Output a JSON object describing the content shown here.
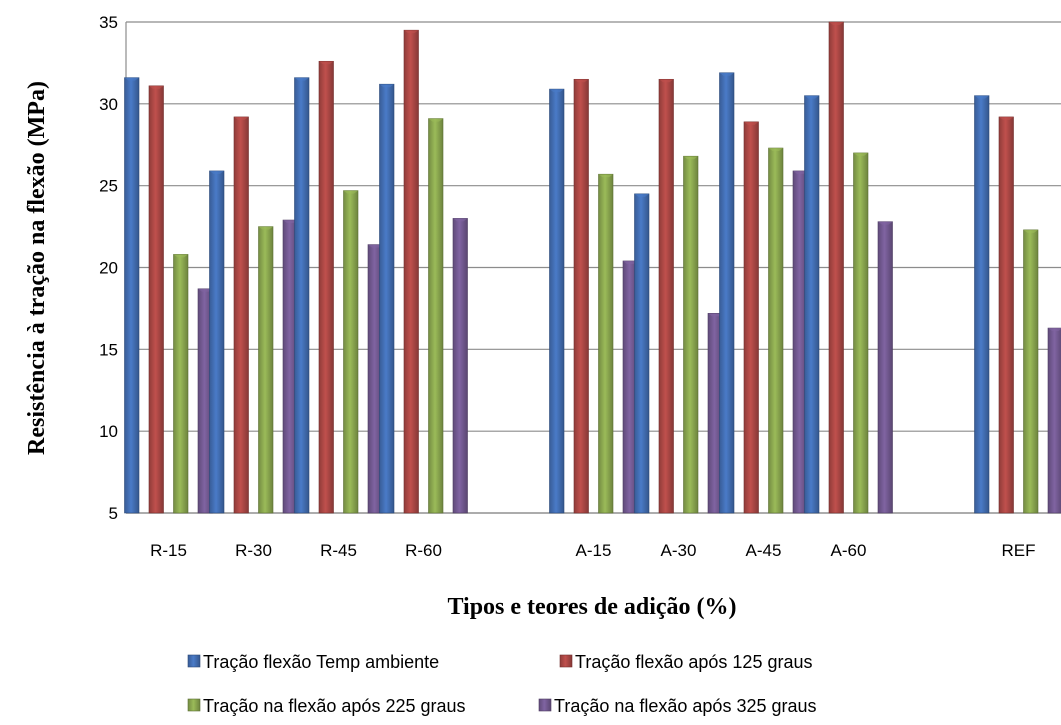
{
  "chart_data": {
    "type": "bar",
    "title": "",
    "xlabel": "Tipos e teores de adição (%)",
    "ylabel": "Resistência à tração na flexão (MPa)",
    "ylim": [
      5,
      35
    ],
    "yticks": [
      5,
      10,
      15,
      20,
      25,
      30,
      35
    ],
    "grid": true,
    "legend_position": "bottom",
    "categories": [
      "R-15",
      "R-30",
      "R-45",
      "R-60",
      "",
      "A-15",
      "A-30",
      "A-45",
      "A-60",
      "",
      "REF"
    ],
    "series": [
      {
        "name": "Tração flexão Temp ambiente",
        "color": "#4a7bc8",
        "values": [
          31.6,
          25.9,
          31.6,
          31.2,
          null,
          30.9,
          24.5,
          31.9,
          30.5,
          null,
          30.5
        ]
      },
      {
        "name": "Tração flexão após 125 graus",
        "color": "#c0504d",
        "values": [
          31.1,
          29.2,
          32.6,
          34.5,
          null,
          31.5,
          31.5,
          28.9,
          35.0,
          null,
          29.2
        ]
      },
      {
        "name": "Tração na flexão após 225 graus",
        "color": "#9bbb59",
        "values": [
          20.8,
          22.5,
          24.7,
          29.1,
          null,
          25.7,
          26.8,
          27.3,
          27.0,
          null,
          22.3
        ]
      },
      {
        "name": "Tração na flexão após 325 graus",
        "color": "#8064a2",
        "values": [
          18.7,
          22.9,
          21.4,
          23.0,
          null,
          20.4,
          17.2,
          25.9,
          22.8,
          null,
          16.3
        ]
      }
    ]
  }
}
